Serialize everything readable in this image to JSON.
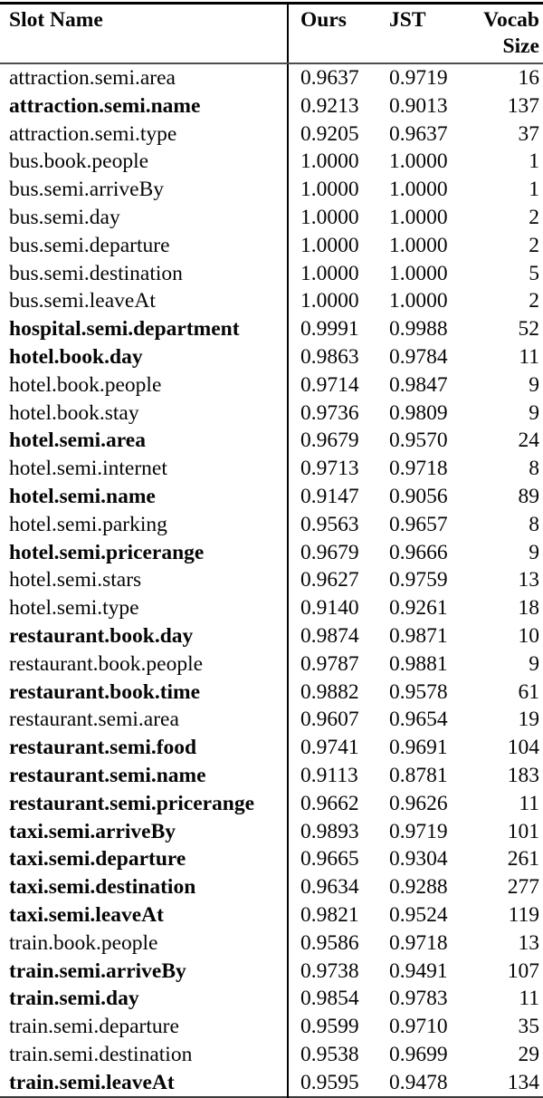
{
  "table": {
    "header": {
      "slot_name": "Slot Name",
      "ours": "Ours",
      "jst": "JST",
      "vocab_size": "Vocab Size"
    },
    "rows": [
      {
        "slot": "attraction.semi.area",
        "ours": "0.9637",
        "jst": "0.9719",
        "vocab": "16",
        "bold": false
      },
      {
        "slot": "attraction.semi.name",
        "ours": "0.9213",
        "jst": "0.9013",
        "vocab": "137",
        "bold": true
      },
      {
        "slot": "attraction.semi.type",
        "ours": "0.9205",
        "jst": "0.9637",
        "vocab": "37",
        "bold": false
      },
      {
        "slot": "bus.book.people",
        "ours": "1.0000",
        "jst": "1.0000",
        "vocab": "1",
        "bold": false
      },
      {
        "slot": "bus.semi.arriveBy",
        "ours": "1.0000",
        "jst": "1.0000",
        "vocab": "1",
        "bold": false
      },
      {
        "slot": "bus.semi.day",
        "ours": "1.0000",
        "jst": "1.0000",
        "vocab": "2",
        "bold": false
      },
      {
        "slot": "bus.semi.departure",
        "ours": "1.0000",
        "jst": "1.0000",
        "vocab": "2",
        "bold": false
      },
      {
        "slot": "bus.semi.destination",
        "ours": "1.0000",
        "jst": "1.0000",
        "vocab": "5",
        "bold": false
      },
      {
        "slot": "bus.semi.leaveAt",
        "ours": "1.0000",
        "jst": "1.0000",
        "vocab": "2",
        "bold": false
      },
      {
        "slot": "hospital.semi.department",
        "ours": "0.9991",
        "jst": "0.9988",
        "vocab": "52",
        "bold": true
      },
      {
        "slot": "hotel.book.day",
        "ours": "0.9863",
        "jst": "0.9784",
        "vocab": "11",
        "bold": true
      },
      {
        "slot": "hotel.book.people",
        "ours": "0.9714",
        "jst": "0.9847",
        "vocab": "9",
        "bold": false
      },
      {
        "slot": "hotel.book.stay",
        "ours": "0.9736",
        "jst": "0.9809",
        "vocab": "9",
        "bold": false
      },
      {
        "slot": "hotel.semi.area",
        "ours": "0.9679",
        "jst": "0.9570",
        "vocab": "24",
        "bold": true
      },
      {
        "slot": "hotel.semi.internet",
        "ours": "0.9713",
        "jst": "0.9718",
        "vocab": "8",
        "bold": false
      },
      {
        "slot": "hotel.semi.name",
        "ours": "0.9147",
        "jst": "0.9056",
        "vocab": "89",
        "bold": true
      },
      {
        "slot": "hotel.semi.parking",
        "ours": "0.9563",
        "jst": "0.9657",
        "vocab": "8",
        "bold": false
      },
      {
        "slot": "hotel.semi.pricerange",
        "ours": "0.9679",
        "jst": "0.9666",
        "vocab": "9",
        "bold": true
      },
      {
        "slot": "hotel.semi.stars",
        "ours": "0.9627",
        "jst": "0.9759",
        "vocab": "13",
        "bold": false
      },
      {
        "slot": "hotel.semi.type",
        "ours": "0.9140",
        "jst": "0.9261",
        "vocab": "18",
        "bold": false
      },
      {
        "slot": "restaurant.book.day",
        "ours": "0.9874",
        "jst": "0.9871",
        "vocab": "10",
        "bold": true
      },
      {
        "slot": "restaurant.book.people",
        "ours": "0.9787",
        "jst": "0.9881",
        "vocab": "9",
        "bold": false
      },
      {
        "slot": "restaurant.book.time",
        "ours": "0.9882",
        "jst": "0.9578",
        "vocab": "61",
        "bold": true
      },
      {
        "slot": "restaurant.semi.area",
        "ours": "0.9607",
        "jst": "0.9654",
        "vocab": "19",
        "bold": false
      },
      {
        "slot": "restaurant.semi.food",
        "ours": "0.9741",
        "jst": "0.9691",
        "vocab": "104",
        "bold": true
      },
      {
        "slot": "restaurant.semi.name",
        "ours": "0.9113",
        "jst": "0.8781",
        "vocab": "183",
        "bold": true
      },
      {
        "slot": "restaurant.semi.pricerange",
        "ours": "0.9662",
        "jst": "0.9626",
        "vocab": "11",
        "bold": true
      },
      {
        "slot": "taxi.semi.arriveBy",
        "ours": "0.9893",
        "jst": "0.9719",
        "vocab": "101",
        "bold": true
      },
      {
        "slot": "taxi.semi.departure",
        "ours": "0.9665",
        "jst": "0.9304",
        "vocab": "261",
        "bold": true
      },
      {
        "slot": "taxi.semi.destination",
        "ours": "0.9634",
        "jst": "0.9288",
        "vocab": "277",
        "bold": true
      },
      {
        "slot": "taxi.semi.leaveAt",
        "ours": "0.9821",
        "jst": "0.9524",
        "vocab": "119",
        "bold": true
      },
      {
        "slot": "train.book.people",
        "ours": "0.9586",
        "jst": "0.9718",
        "vocab": "13",
        "bold": false
      },
      {
        "slot": "train.semi.arriveBy",
        "ours": "0.9738",
        "jst": "0.9491",
        "vocab": "107",
        "bold": true
      },
      {
        "slot": "train.semi.day",
        "ours": "0.9854",
        "jst": "0.9783",
        "vocab": "11",
        "bold": true
      },
      {
        "slot": "train.semi.departure",
        "ours": "0.9599",
        "jst": "0.9710",
        "vocab": "35",
        "bold": false
      },
      {
        "slot": "train.semi.destination",
        "ours": "0.9538",
        "jst": "0.9699",
        "vocab": "29",
        "bold": false
      },
      {
        "slot": "train.semi.leaveAt",
        "ours": "0.9595",
        "jst": "0.9478",
        "vocab": "134",
        "bold": true
      }
    ]
  }
}
